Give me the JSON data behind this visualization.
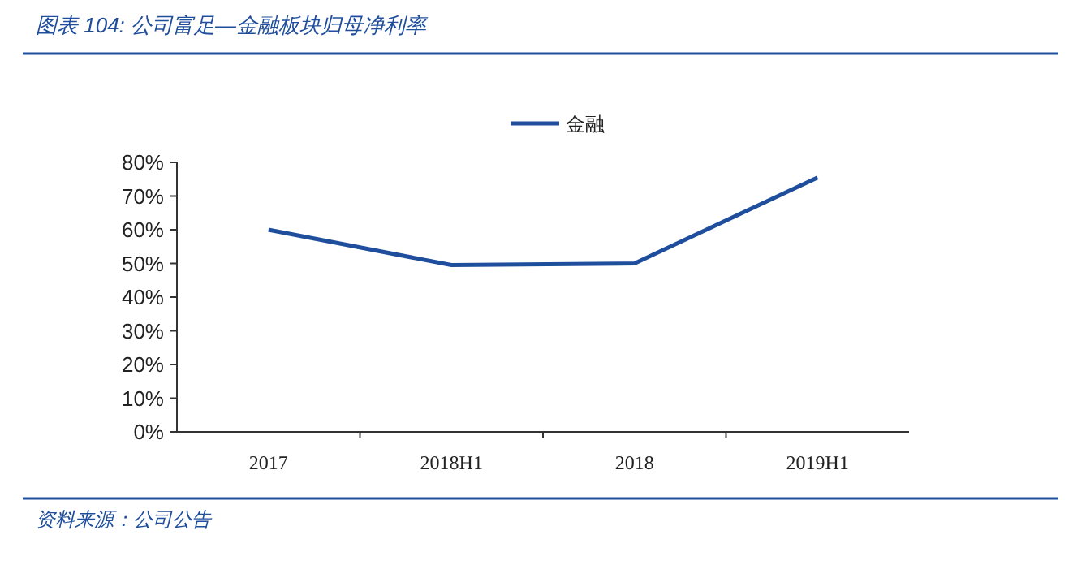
{
  "chart_data": {
    "type": "line",
    "title": "图表 104: 公司富足—金融板块归母净利率",
    "categories": [
      "2017",
      "2018H1",
      "2018",
      "2019H1"
    ],
    "series": [
      {
        "name": "金融",
        "color": "#1f4e9c",
        "values": [
          60,
          49.5,
          50,
          75.5
        ]
      }
    ],
    "ylim": [
      0,
      80
    ],
    "yticks": [
      {
        "value": 0,
        "label": "0%"
      },
      {
        "value": 10,
        "label": "10%"
      },
      {
        "value": 20,
        "label": "20%"
      },
      {
        "value": 30,
        "label": "30%"
      },
      {
        "value": 40,
        "label": "40%"
      },
      {
        "value": 50,
        "label": "50%"
      },
      {
        "value": 60,
        "label": "60%"
      },
      {
        "value": 70,
        "label": "70%"
      },
      {
        "value": 80,
        "label": "80%"
      }
    ],
    "grid": false,
    "legend": "top",
    "marker": "none",
    "line_style": "solid",
    "annotations": [
      "资料来源：公司公告"
    ]
  }
}
